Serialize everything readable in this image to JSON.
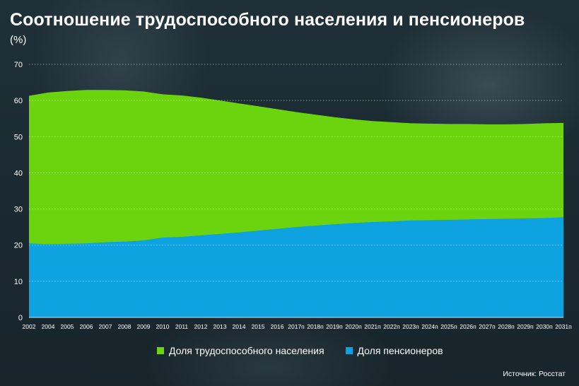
{
  "title": "Соотношение трудоспособного населения и пенсионеров",
  "unit": "(%)",
  "source": "Источник: Росстат",
  "colors": {
    "working": "#6cd40f",
    "pensioners": "#0ea3e0"
  },
  "chart_data": {
    "type": "area",
    "title": "Соотношение трудоспособного населения и пенсионеров",
    "ylim": [
      0,
      70
    ],
    "yticks": [
      0,
      10,
      20,
      30,
      40,
      50,
      60,
      70
    ],
    "grid": true,
    "legend_position": "bottom",
    "categories": [
      "2002",
      "2004",
      "2005",
      "2006",
      "2007",
      "2008",
      "2009",
      "2010",
      "2011",
      "2012",
      "2013",
      "2014",
      "2015",
      "2016",
      "2017п",
      "2018п",
      "2019п",
      "2020п",
      "2021п",
      "2022п",
      "2023п",
      "2024п",
      "2025п",
      "2026п",
      "2027п",
      "2028п",
      "2029п",
      "2030п",
      "2031п"
    ],
    "series": [
      {
        "name": "Доля трудоспособного населения",
        "values": [
          61.3,
          62.2,
          62.6,
          62.9,
          62.9,
          62.8,
          62.5,
          61.7,
          61.4,
          60.8,
          60.0,
          59.2,
          58.4,
          57.6,
          56.8,
          56.1,
          55.4,
          54.8,
          54.3,
          54.0,
          53.7,
          53.6,
          53.5,
          53.5,
          53.4,
          53.4,
          53.5,
          53.7,
          53.8
        ]
      },
      {
        "name": "Доля пенсионеров",
        "values": [
          20.5,
          20.3,
          20.4,
          20.5,
          20.8,
          21.0,
          21.3,
          22.1,
          22.3,
          22.7,
          23.1,
          23.5,
          24.0,
          24.5,
          25.0,
          25.4,
          25.8,
          26.1,
          26.4,
          26.6,
          26.8,
          26.9,
          27.0,
          27.1,
          27.2,
          27.3,
          27.4,
          27.5,
          27.7
        ]
      }
    ]
  }
}
